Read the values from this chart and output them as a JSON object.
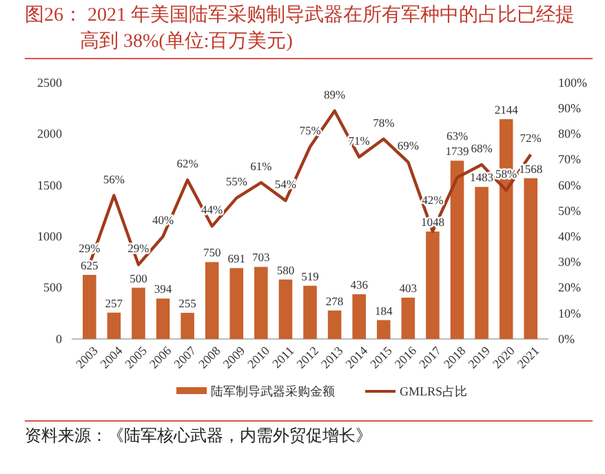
{
  "chart_data": {
    "type": "bar",
    "title": "图26：  2021 年美国陆军采购制导武器在所有军种中的占比已经提高到 38%(单位:百万美元)",
    "annotations": [
      "资料来源：《陆军核心武器，内需外贸促增长》"
    ],
    "categories": [
      "2003",
      "2004",
      "2005",
      "2006",
      "2007",
      "2008",
      "2009",
      "2010",
      "2011",
      "2012",
      "2013",
      "2014",
      "2015",
      "2016",
      "2017",
      "2018",
      "2019",
      "2020",
      "2021"
    ],
    "series": [
      {
        "name": "陆军制导武器采购金额",
        "color": "#c8622e",
        "values": [
          625,
          257,
          500,
          394,
          255,
          750,
          691,
          703,
          580,
          519,
          278,
          436,
          184,
          403,
          1048,
          1739,
          1483,
          2144,
          1568
        ]
      },
      {
        "name": "GMLRS占比",
        "type": "line",
        "axis": "y2",
        "color": "#a13b1c",
        "values": [
          29,
          56,
          29,
          40,
          62,
          44,
          55,
          61,
          54,
          75,
          89,
          71,
          78,
          69,
          42,
          63,
          68,
          58,
          72
        ],
        "value_labels": [
          "29%",
          "56%",
          "29%",
          "40%",
          "62%",
          "44%",
          "55%",
          "61%",
          "54%",
          "75%",
          "89%",
          "71%",
          "78%",
          "69%",
          "42%",
          "63%",
          "68%",
          "58%",
          "72%"
        ]
      }
    ],
    "ylim": [
      0,
      2500
    ],
    "yticks": [
      0,
      500,
      1000,
      1500,
      2000,
      2500
    ],
    "y2lim": [
      0,
      100
    ],
    "y2ticks": [
      {
        "value": 0,
        "label": "0%"
      },
      {
        "value": 10,
        "label": "10%"
      },
      {
        "value": 20,
        "label": "20%"
      },
      {
        "value": 30,
        "label": "30%"
      },
      {
        "value": 40,
        "label": "40%"
      },
      {
        "value": 50,
        "label": "50%"
      },
      {
        "value": 60,
        "label": "60%"
      },
      {
        "value": 70,
        "label": "70%"
      },
      {
        "value": 80,
        "label": "80%"
      },
      {
        "value": 90,
        "label": "90%"
      },
      {
        "value": 100,
        "label": "100%"
      }
    ],
    "data_labels": true,
    "legend": "bottom",
    "grid": false,
    "marker": "none"
  }
}
